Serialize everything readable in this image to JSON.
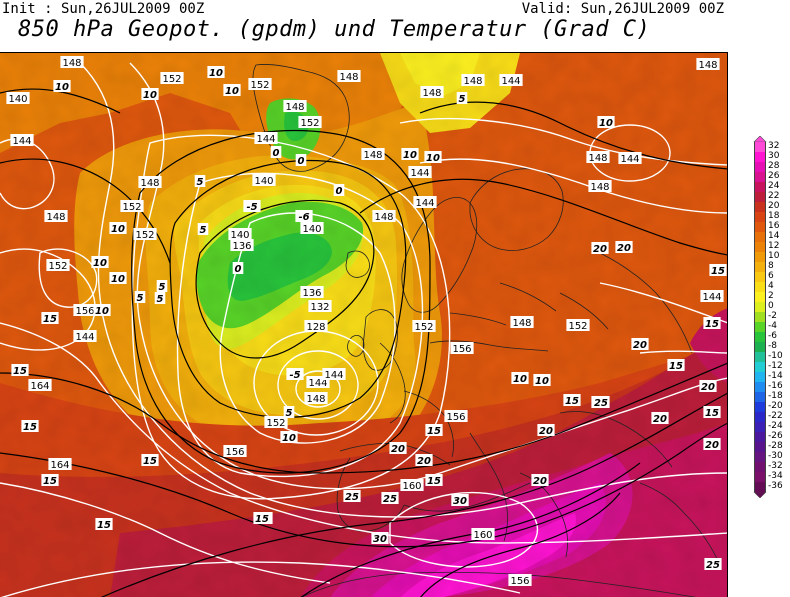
{
  "header": {
    "init": "Init : Sun,26JUL2009 00Z",
    "valid": "Valid: Sun,26JUL2009 00Z",
    "title": "850 hPa Geopot. (gpdm) und Temperatur (Grad C)"
  },
  "legend": {
    "levels": [
      {
        "label": "32",
        "color": "#ff4ad8"
      },
      {
        "label": "30",
        "color": "#ff14d2"
      },
      {
        "label": "28",
        "color": "#e60eb4"
      },
      {
        "label": "26",
        "color": "#d81290"
      },
      {
        "label": "24",
        "color": "#c8145c"
      },
      {
        "label": "22",
        "color": "#bd1e3a"
      },
      {
        "label": "20",
        "color": "#c8321e"
      },
      {
        "label": "18",
        "color": "#d84414"
      },
      {
        "label": "16",
        "color": "#e0580e"
      },
      {
        "label": "14",
        "color": "#e8700a"
      },
      {
        "label": "12",
        "color": "#ec8208"
      },
      {
        "label": "10",
        "color": "#f09a0a"
      },
      {
        "label": "8",
        "color": "#f4b00c"
      },
      {
        "label": "6",
        "color": "#f8c812"
      },
      {
        "label": "4",
        "color": "#fade18"
      },
      {
        "label": "2",
        "color": "#fcf020"
      },
      {
        "label": "0",
        "color": "#dcf020"
      },
      {
        "label": "-2",
        "color": "#a0e020"
      },
      {
        "label": "-4",
        "color": "#58d428"
      },
      {
        "label": "-6",
        "color": "#28c43c"
      },
      {
        "label": "-8",
        "color": "#1cb050"
      },
      {
        "label": "-10",
        "color": "#22c098"
      },
      {
        "label": "-12",
        "color": "#22cdd4"
      },
      {
        "label": "-14",
        "color": "#20b4f0"
      },
      {
        "label": "-16",
        "color": "#1e8cf0"
      },
      {
        "label": "-18",
        "color": "#1e64e6"
      },
      {
        "label": "-20",
        "color": "#1e3cdc"
      },
      {
        "label": "-22",
        "color": "#2a28c8"
      },
      {
        "label": "-24",
        "color": "#3a20b4"
      },
      {
        "label": "-26",
        "color": "#4a189c"
      },
      {
        "label": "-28",
        "color": "#58148c"
      },
      {
        "label": "-30",
        "color": "#661480"
      },
      {
        "label": "-32",
        "color": "#721070"
      },
      {
        "label": "-34",
        "color": "#7a1068"
      },
      {
        "label": "-36",
        "color": "#640c54"
      }
    ]
  },
  "map": {
    "geopotential_contour_labels": [
      "148",
      "152",
      "152",
      "148",
      "144",
      "140",
      "144",
      "148",
      "152",
      "152",
      "144",
      "152",
      "148",
      "152",
      "148",
      "148",
      "152",
      "156",
      "144",
      "140",
      "136",
      "140",
      "140",
      "136",
      "132",
      "128",
      "152",
      "144",
      "144",
      "148",
      "148",
      "144",
      "148",
      "144",
      "148",
      "148",
      "148",
      "156",
      "144",
      "144",
      "148",
      "164",
      "164",
      "156",
      "160",
      "160",
      "156",
      "152",
      "156",
      "152",
      "148"
    ],
    "temperature_contour_labels": [
      "10",
      "10",
      "10",
      "10",
      "10",
      "5",
      "5",
      "5",
      "0",
      "0",
      "-5",
      "-6",
      "0",
      "-5",
      "5",
      "0",
      "5",
      "10",
      "10",
      "10",
      "10",
      "10",
      "10",
      "10",
      "15",
      "15",
      "15",
      "5",
      "5",
      "10",
      "10",
      "15",
      "15",
      "15",
      "15",
      "15",
      "15",
      "15",
      "15",
      "15",
      "20",
      "20",
      "20",
      "20",
      "20",
      "20",
      "20",
      "25",
      "25",
      "25",
      "20",
      "20",
      "25",
      "30",
      "30",
      "15",
      "15",
      "20",
      "20",
      "15",
      "25"
    ]
  }
}
